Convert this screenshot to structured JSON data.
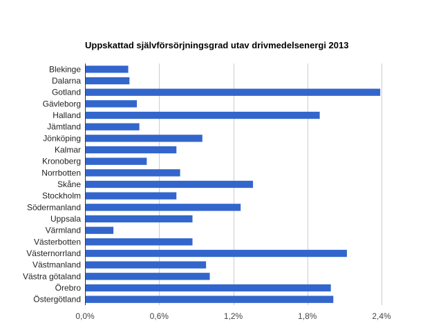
{
  "chart_data": {
    "type": "bar",
    "orientation": "horizontal",
    "title": "Uppskattad självförsörjningsgrad utav drivmedelsenergi 2013",
    "xlabel": "",
    "ylabel": "",
    "xlim": [
      0,
      0.024
    ],
    "x_ticks": [
      0,
      0.006,
      0.012,
      0.018,
      0.024
    ],
    "x_tick_labels": [
      "0,0%",
      "0,6%",
      "1,2%",
      "1,8%",
      "2,4%"
    ],
    "grid": true,
    "legend": "none",
    "bar_color": "#3366cc",
    "categories": [
      "Blekinge",
      "Dalarna",
      "Gotland",
      "Gävleborg",
      "Halland",
      "Jämtland",
      "Jönköping",
      "Kalmar",
      "Kronoberg",
      "Norrbotten",
      "Skåne",
      "Stockholm",
      "Södermanland",
      "Uppsala",
      "Värmland",
      "Västerbotten",
      "Västernorrland",
      "Västmanland",
      "Västra götaland",
      "Örebro",
      "Östergötland"
    ],
    "values": [
      0.0035,
      0.0036,
      0.0239,
      0.0042,
      0.019,
      0.0044,
      0.0095,
      0.0074,
      0.005,
      0.0077,
      0.0136,
      0.0074,
      0.0126,
      0.0087,
      0.0023,
      0.0087,
      0.0212,
      0.0098,
      0.0101,
      0.0199,
      0.0201
    ]
  }
}
